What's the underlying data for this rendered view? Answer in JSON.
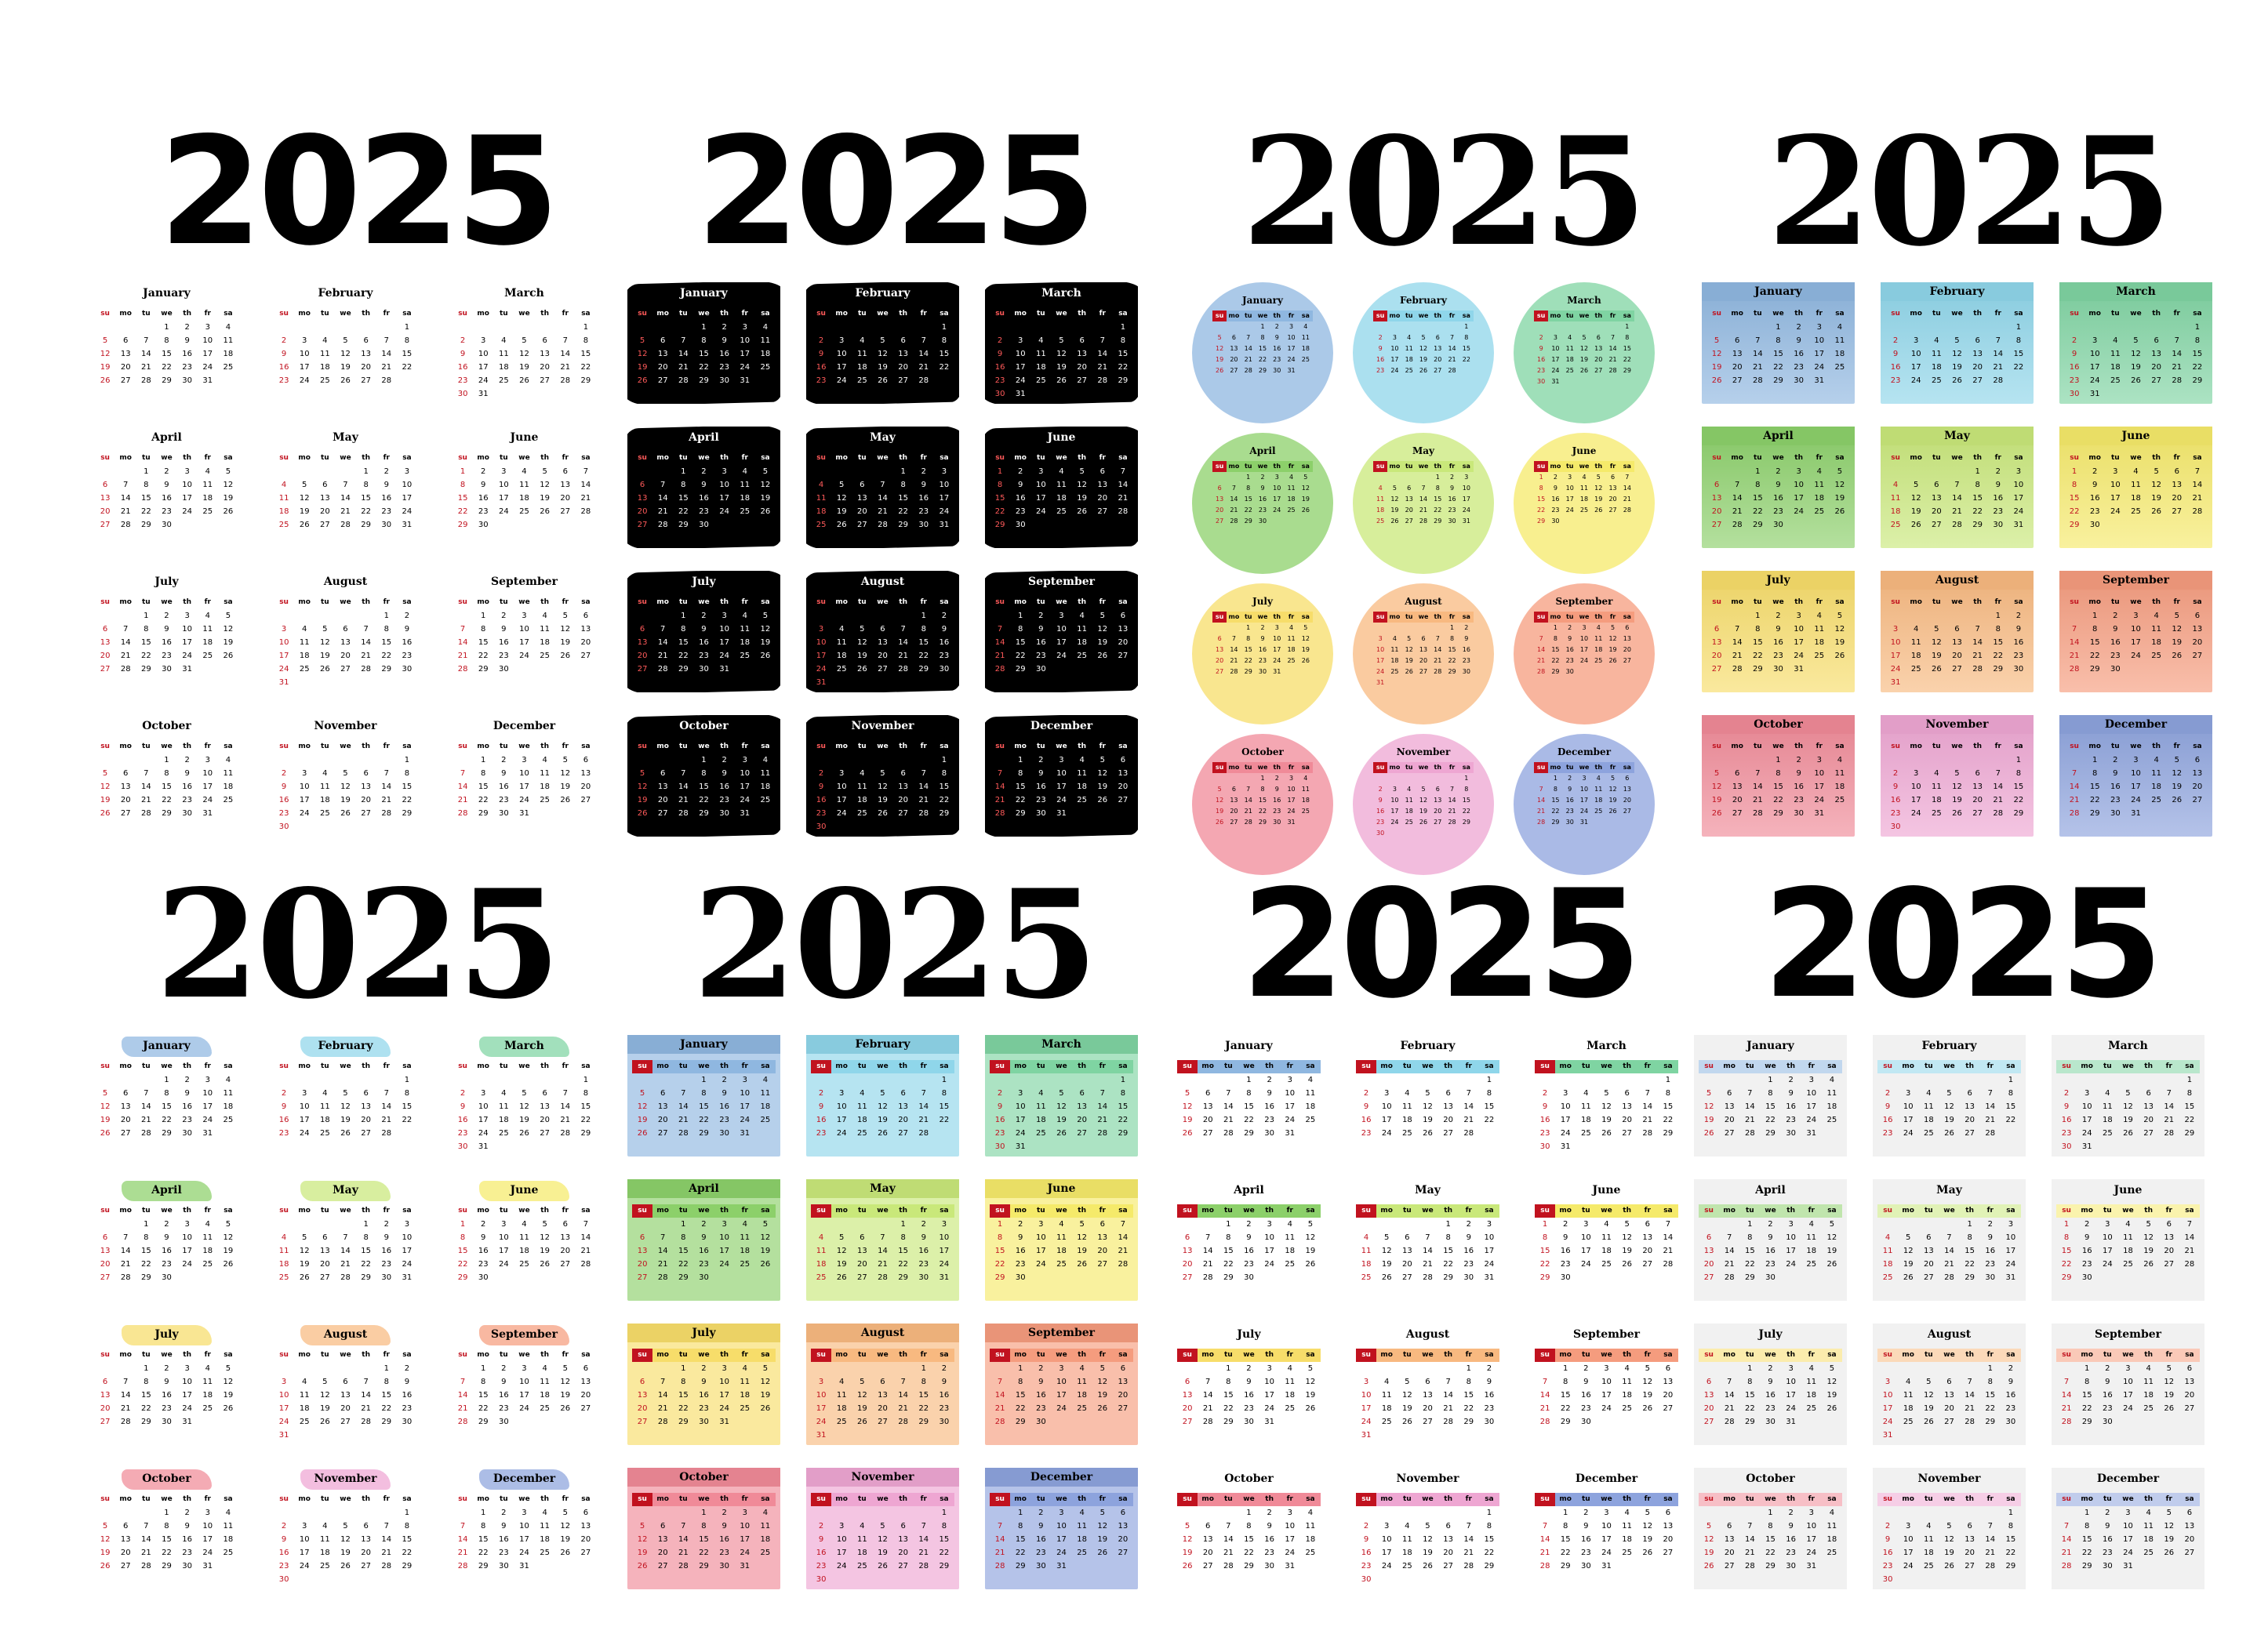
{
  "year": "2025",
  "months": [
    "January",
    "February",
    "March",
    "April",
    "May",
    "June",
    "July",
    "August",
    "September",
    "October",
    "November",
    "December"
  ],
  "weekdays": [
    "su",
    "mo",
    "tu",
    "we",
    "th",
    "fr",
    "sa"
  ],
  "month_colors": [
    "#8fb7e0",
    "#8fd6ea",
    "#7fd4a2",
    "#8cd06a",
    "#c9e87a",
    "#f5ea6a",
    "#f7dd6a",
    "#f8b980",
    "#f59c7e",
    "#f08a98",
    "#eea6d2",
    "#8da3dd"
  ],
  "panels": [
    {
      "style": "plain",
      "year_font": "sans"
    },
    {
      "style": "brush",
      "year_font": "sans"
    },
    {
      "style": "circle",
      "year_font": "serif"
    },
    {
      "style": "grad",
      "year_font": "serif"
    },
    {
      "style": "swatch",
      "year_font": "serif"
    },
    {
      "style": "band",
      "year_font": "serif"
    },
    {
      "style": "stripe",
      "year_font": "sans"
    },
    {
      "style": "gray",
      "year_font": "sans"
    }
  ],
  "colors": {
    "sunday": "#c1121f",
    "text": "#000000",
    "background": "#ffffff"
  }
}
